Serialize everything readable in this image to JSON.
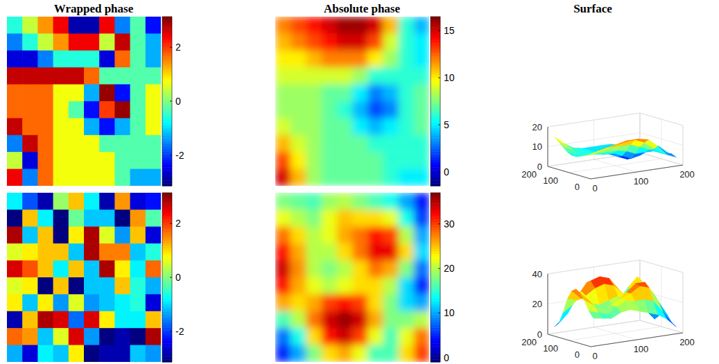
{
  "chart_data": [
    {
      "type": "heatmap",
      "title": "Wrapped phase",
      "color": "jet",
      "tick_labels": false,
      "color_range": [
        -3.1416,
        3.1416
      ],
      "color_ticks": [
        -2,
        0,
        2
      ],
      "cells": [
        [
          -0.57,
          0.43,
          1.43,
          2.43,
          -2.85,
          -2.85,
          2.43,
          -1.57,
          -0.28,
          -2.28
        ],
        [
          -1.57,
          -0.57,
          0.43,
          1.43,
          2.43,
          2.43,
          0.43,
          2.72,
          -0.28,
          -1.28
        ],
        [
          -2.57,
          -2.57,
          -1.57,
          -0.57,
          -0.57,
          -0.57,
          -2.57,
          1.72,
          -0.28,
          -1.28
        ],
        [
          2.72,
          2.72,
          2.72,
          2.72,
          2.72,
          1.72,
          -0.28,
          -0.28,
          -0.28,
          -0.28
        ],
        [
          1.72,
          1.72,
          1.72,
          0.72,
          0.72,
          -1.28,
          3,
          -2.28,
          -0.28,
          0.72
        ],
        [
          1.72,
          1.72,
          1.72,
          0.72,
          -0.28,
          -2.28,
          2,
          3,
          -0.28,
          0.72
        ],
        [
          2.72,
          1.72,
          1.72,
          0.72,
          0.72,
          -1.28,
          -2.28,
          -1.28,
          -0.28,
          0.72
        ],
        [
          -1.57,
          2.72,
          1.72,
          0.72,
          0.72,
          0.72,
          -0.28,
          -0.28,
          -0.28,
          -0.28
        ],
        [
          0.43,
          -2.57,
          1.72,
          0.72,
          0.72,
          0.72,
          0.72,
          -0.28,
          -0.28,
          -0.28
        ],
        [
          2.43,
          -1.57,
          1.72,
          0.72,
          0.72,
          0.72,
          0.72,
          -0.28,
          -1.28,
          -1.28
        ]
      ]
    },
    {
      "type": "heatmap",
      "title": "Absolute phase",
      "color": "jet",
      "tick_labels": false,
      "color_range": [
        -1.5,
        16.5
      ],
      "color_ticks": [
        0,
        5,
        10,
        15
      ],
      "cells": [
        [
          12,
          13,
          14,
          15,
          16,
          16,
          15,
          11,
          6,
          4
        ],
        [
          11,
          12,
          13,
          14,
          15,
          15,
          13,
          9,
          6,
          5
        ],
        [
          10,
          10,
          11,
          12,
          12,
          12,
          10,
          8,
          6,
          5
        ],
        [
          9,
          9,
          9,
          9,
          9,
          8,
          6,
          6,
          6,
          6
        ],
        [
          8,
          8,
          8,
          7,
          7,
          5,
          3,
          4,
          6,
          7
        ],
        [
          8,
          8,
          8,
          7,
          6,
          4,
          2,
          3,
          6,
          7
        ],
        [
          9,
          8,
          8,
          7,
          7,
          5,
          4,
          5,
          6,
          7
        ],
        [
          11,
          9,
          8,
          7,
          7,
          7,
          6,
          6,
          6,
          6
        ],
        [
          13,
          10,
          8,
          7,
          7,
          7,
          7,
          6,
          6,
          6
        ],
        [
          15,
          11,
          8,
          7,
          7,
          7,
          7,
          6,
          5,
          5
        ]
      ]
    },
    {
      "type": "surface",
      "title": "Surface",
      "color": "jet",
      "grid": true,
      "xlim": [
        0,
        200
      ],
      "ylim": [
        0,
        200
      ],
      "zlim": [
        0,
        20
      ],
      "xticks": [
        0,
        100,
        200
      ],
      "yticks": [
        0,
        100,
        200
      ],
      "zticks": [
        0,
        10,
        20
      ],
      "z": [
        [
          12,
          13,
          14,
          15,
          16,
          16,
          15,
          11,
          6,
          4
        ],
        [
          11,
          12,
          13,
          14,
          15,
          15,
          13,
          9,
          6,
          5
        ],
        [
          10,
          10,
          11,
          12,
          12,
          12,
          10,
          8,
          6,
          5
        ],
        [
          9,
          9,
          9,
          9,
          9,
          8,
          6,
          6,
          6,
          6
        ],
        [
          8,
          8,
          8,
          7,
          7,
          5,
          3,
          4,
          6,
          7
        ],
        [
          8,
          8,
          8,
          7,
          6,
          4,
          2,
          3,
          6,
          7
        ],
        [
          9,
          8,
          8,
          7,
          7,
          5,
          4,
          5,
          6,
          7
        ],
        [
          11,
          9,
          8,
          7,
          7,
          7,
          6,
          6,
          6,
          6
        ],
        [
          13,
          10,
          8,
          7,
          7,
          7,
          7,
          6,
          6,
          6
        ],
        [
          15,
          11,
          8,
          7,
          7,
          7,
          7,
          6,
          5,
          5
        ]
      ]
    },
    {
      "type": "heatmap",
      "color": "jet",
      "tick_labels": false,
      "color_range": [
        -3.1416,
        3.1416
      ],
      "color_ticks": [
        -2,
        0,
        2
      ],
      "cells": [
        [
          -0.85,
          -1.85,
          -2.85,
          0.15,
          1.15,
          -0.85,
          -2.85,
          1.43,
          -2.57,
          -2.28
        ],
        [
          -3.13,
          1.15,
          -0.85,
          -3.13,
          -0.13,
          -1.13,
          -1.13,
          -3.13,
          1.43,
          -0.28
        ],
        [
          2.87,
          -1.13,
          1.15,
          -3.13,
          0.87,
          2.87,
          0.58,
          -1.42,
          1.15,
          -2.57
        ],
        [
          0.58,
          0.87,
          1.15,
          1.15,
          -1.13,
          2.87,
          1.58,
          1.58,
          -1.13,
          -0.57
        ],
        [
          2.58,
          1.87,
          1.15,
          -0.85,
          1.15,
          -1.13,
          2.87,
          0.87,
          -0.85,
          1.72
        ],
        [
          0.58,
          0.87,
          -3.13,
          1.15,
          -3.13,
          -1.13,
          -1.13,
          1.15,
          -0.57,
          -1.28
        ],
        [
          0.87,
          -1.13,
          0.87,
          -1.42,
          0.58,
          -1.42,
          -1.13,
          -0.85,
          -0.57,
          -2.57
        ],
        [
          -2.85,
          1.15,
          2.87,
          2.58,
          -1.7,
          2.58,
          0.87,
          -0.85,
          -0.85,
          1.15
        ],
        [
          1.72,
          1.43,
          -1.13,
          0.58,
          2.58,
          -1.42,
          -3.13,
          -2.85,
          -3.13,
          2.87
        ],
        [
          -1.28,
          -2.57,
          -0.85,
          -1.13,
          0.87,
          -3.13,
          -2.85,
          -2.85,
          -1.13,
          -1.42
        ]
      ]
    },
    {
      "type": "heatmap",
      "color": "jet",
      "tick_labels": false,
      "color_range": [
        -1,
        37
      ],
      "color_ticks": [
        0,
        10,
        20,
        30
      ],
      "cells": [
        [
          18,
          17,
          16,
          19,
          20,
          18,
          16,
          14,
          10,
          4
        ],
        [
          22,
          20,
          18,
          22,
          25,
          24,
          24,
          22,
          14,
          6
        ],
        [
          28,
          24,
          20,
          22,
          26,
          28,
          32,
          30,
          20,
          10
        ],
        [
          32,
          26,
          20,
          20,
          24,
          28,
          33,
          33,
          24,
          12
        ],
        [
          34,
          27,
          20,
          18,
          20,
          24,
          28,
          26,
          18,
          8
        ],
        [
          32,
          26,
          22,
          20,
          22,
          24,
          24,
          20,
          12,
          5
        ],
        [
          26,
          24,
          26,
          30,
          32,
          30,
          24,
          18,
          12,
          10
        ],
        [
          16,
          20,
          28,
          34,
          36,
          34,
          26,
          18,
          18,
          20
        ],
        [
          8,
          14,
          24,
          32,
          34,
          30,
          22,
          16,
          22,
          28
        ],
        [
          5,
          10,
          18,
          24,
          26,
          22,
          16,
          16,
          24,
          30
        ]
      ]
    },
    {
      "type": "surface",
      "color": "jet",
      "grid": true,
      "xlim": [
        0,
        200
      ],
      "ylim": [
        0,
        200
      ],
      "zlim": [
        0,
        40
      ],
      "xticks": [
        0,
        100,
        200
      ],
      "yticks": [
        0,
        100,
        200
      ],
      "zticks": [
        0,
        20,
        40
      ],
      "z": [
        [
          18,
          17,
          16,
          19,
          20,
          18,
          16,
          14,
          10,
          4
        ],
        [
          22,
          20,
          18,
          22,
          25,
          24,
          24,
          22,
          14,
          6
        ],
        [
          28,
          24,
          20,
          22,
          26,
          28,
          32,
          30,
          20,
          10
        ],
        [
          32,
          26,
          20,
          20,
          24,
          28,
          33,
          33,
          24,
          12
        ],
        [
          34,
          27,
          20,
          18,
          20,
          24,
          28,
          26,
          18,
          8
        ],
        [
          32,
          26,
          22,
          20,
          22,
          24,
          24,
          20,
          12,
          5
        ],
        [
          26,
          24,
          26,
          30,
          32,
          30,
          24,
          18,
          12,
          10
        ],
        [
          16,
          20,
          28,
          34,
          36,
          34,
          26,
          18,
          18,
          20
        ],
        [
          8,
          14,
          24,
          32,
          34,
          30,
          22,
          16,
          22,
          28
        ],
        [
          5,
          10,
          18,
          24,
          26,
          22,
          16,
          16,
          24,
          30
        ]
      ]
    }
  ]
}
